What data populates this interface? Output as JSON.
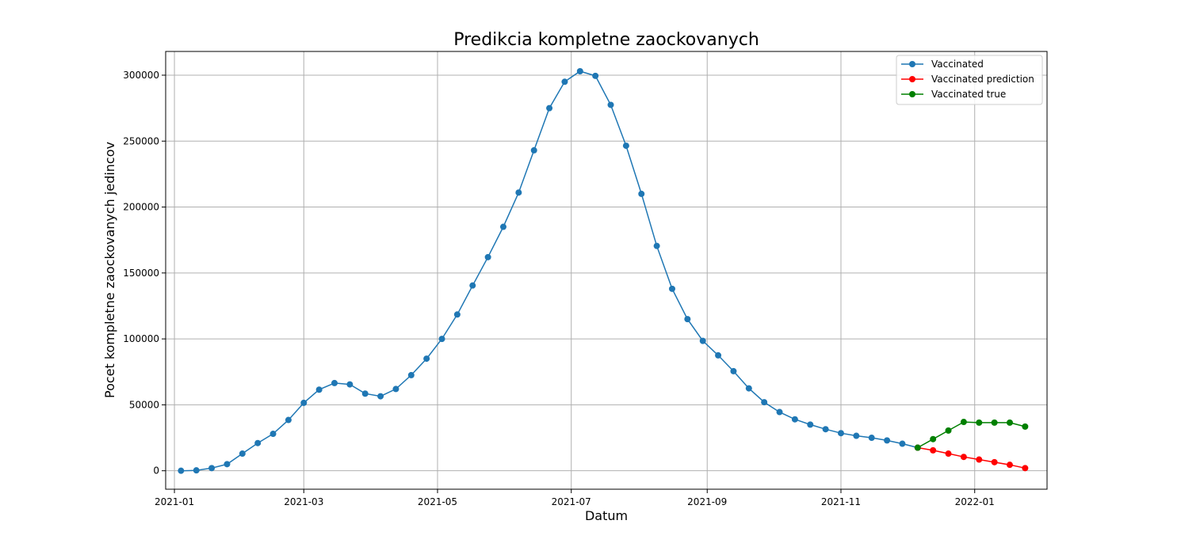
{
  "chart_data": {
    "type": "line",
    "title": "Predikcia kompletne zaockovanych",
    "xlabel": "Datum",
    "ylabel": "Pocet kompletne zaockovanych jedincov",
    "x_ticks": [
      "2021-01",
      "2021-03",
      "2021-05",
      "2021-07",
      "2021-09",
      "2021-11",
      "2022-01"
    ],
    "y_ticks": [
      0,
      50000,
      100000,
      150000,
      200000,
      250000,
      300000
    ],
    "xlim": [
      "2020-12-28",
      "2022-02-03"
    ],
    "ylim": [
      -14000,
      318000
    ],
    "grid": true,
    "legend_position": "top-right",
    "series": [
      {
        "name": "Vaccinated",
        "color": "#1f77b4",
        "x": [
          "2021-01-04",
          "2021-01-11",
          "2021-01-18",
          "2021-01-25",
          "2021-02-01",
          "2021-02-08",
          "2021-02-15",
          "2021-02-22",
          "2021-03-01",
          "2021-03-08",
          "2021-03-15",
          "2021-03-22",
          "2021-03-29",
          "2021-04-05",
          "2021-04-12",
          "2021-04-19",
          "2021-04-26",
          "2021-05-03",
          "2021-05-10",
          "2021-05-17",
          "2021-05-24",
          "2021-05-31",
          "2021-06-07",
          "2021-06-14",
          "2021-06-21",
          "2021-06-28",
          "2021-07-05",
          "2021-07-12",
          "2021-07-19",
          "2021-07-26",
          "2021-08-02",
          "2021-08-09",
          "2021-08-16",
          "2021-08-23",
          "2021-08-30",
          "2021-09-06",
          "2021-09-13",
          "2021-09-20",
          "2021-09-27",
          "2021-10-04",
          "2021-10-11",
          "2021-10-18",
          "2021-10-25",
          "2021-11-01",
          "2021-11-08",
          "2021-11-15",
          "2021-11-22",
          "2021-11-29",
          "2021-12-06"
        ],
        "values": [
          0,
          300,
          2000,
          5000,
          13000,
          21000,
          28000,
          38500,
          51500,
          61500,
          66500,
          65500,
          58500,
          56500,
          62000,
          72500,
          85000,
          100000,
          118500,
          140500,
          162000,
          185000,
          211000,
          243000,
          275000,
          295000,
          303000,
          299500,
          277500,
          246500,
          210000,
          170500,
          138000,
          115000,
          98500,
          87500,
          75500,
          62500,
          52000,
          44500,
          39000,
          35000,
          31500,
          28500,
          26500,
          25000,
          23000,
          20500,
          17500
        ]
      },
      {
        "name": "Vaccinated prediction",
        "color": "#ff0000",
        "x": [
          "2021-12-06",
          "2021-12-13",
          "2021-12-20",
          "2021-12-27",
          "2022-01-03",
          "2022-01-10",
          "2022-01-17",
          "2022-01-24"
        ],
        "values": [
          17500,
          15500,
          13000,
          10500,
          8500,
          6500,
          4500,
          2000
        ]
      },
      {
        "name": "Vaccinated true",
        "color": "#008000",
        "x": [
          "2021-12-06",
          "2021-12-13",
          "2021-12-20",
          "2021-12-27",
          "2022-01-03",
          "2022-01-10",
          "2022-01-17",
          "2022-01-24"
        ],
        "values": [
          17500,
          24000,
          30500,
          37000,
          36500,
          36500,
          36500,
          33500
        ]
      }
    ]
  }
}
